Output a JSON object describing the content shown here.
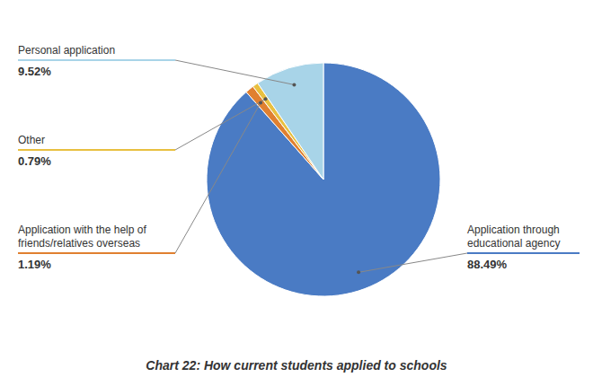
{
  "chart_data": {
    "type": "pie",
    "title": "Chart 22: How current students applied to schools",
    "categories": [
      "Application through\neducational agency",
      "Application with the help of\nfriends/relatives overseas",
      "Other",
      "Personal application"
    ],
    "values": [
      88.49,
      1.19,
      0.79,
      9.52
    ],
    "value_labels": [
      "88.49%",
      "1.19%",
      "0.79%",
      "9.52%"
    ],
    "colors": [
      "#4A7BC4",
      "#E08030",
      "#E8C040",
      "#A8D4E8"
    ],
    "data_labels": true
  }
}
